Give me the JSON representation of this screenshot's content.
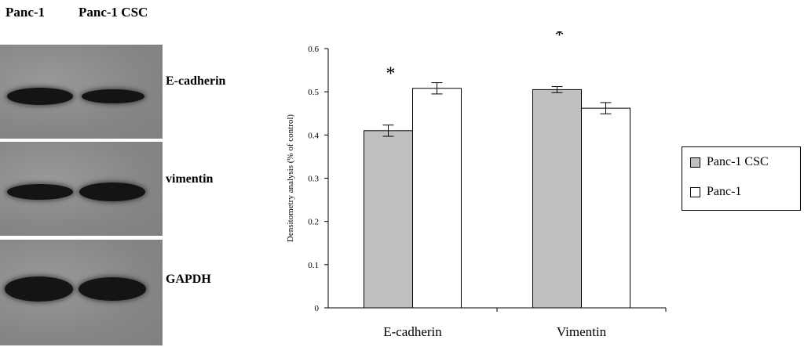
{
  "blot": {
    "lanes": [
      "Panc-1",
      "Panc-1 CSC"
    ],
    "proteins": [
      "E-cadherin",
      "vimentin",
      "GAPDH"
    ]
  },
  "chart_data": {
    "type": "bar",
    "categories": [
      "E-cadherin",
      "Vimentin"
    ],
    "series": [
      {
        "name": "Panc-1 CSC",
        "values": [
          0.41,
          0.505
        ],
        "errors": [
          0.013,
          0.007
        ],
        "color": "#c0c0c0"
      },
      {
        "name": "Panc-1",
        "values": [
          0.508,
          0.462
        ],
        "errors": [
          0.013,
          0.013
        ],
        "color": "#ffffff"
      }
    ],
    "ylabel": "Densitometry analysis (% of control)",
    "ylim": [
      0,
      0.6
    ],
    "yticks": [
      "0",
      "0.1",
      "0.2",
      "0.3",
      "0.4",
      "0.5",
      "0.6"
    ],
    "annotations": [
      "*",
      "*"
    ],
    "legend_position": "right",
    "grid": false
  }
}
